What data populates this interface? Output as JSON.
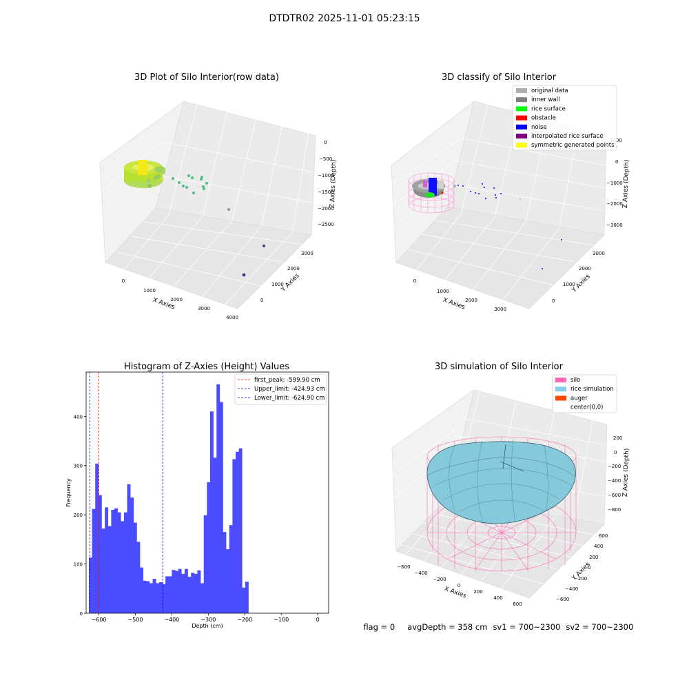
{
  "suptitle": "DTDTR02 2025-11-01 05:23:15",
  "panels": {
    "raw": {
      "title": "3D Plot of Silo Interior(row data)",
      "xlabel": "X Axies",
      "ylabel": "Y Axies",
      "zlabel": "Z Axies (Depth)",
      "xticks": [
        "0",
        "1000",
        "2000",
        "3000",
        "4000"
      ],
      "yticks": [
        "0",
        "1000",
        "2000",
        "3000"
      ],
      "zticks": [
        "0",
        "−500",
        "−1000",
        "−1500",
        "−2000",
        "−2500"
      ]
    },
    "classify": {
      "title": "3D classify of Silo Interior",
      "xlabel": "X Axies",
      "ylabel": "Y Axies",
      "zlabel": "Z Axies (Depth)",
      "xticks": [
        "0",
        "1000",
        "2000",
        "3000"
      ],
      "yticks": [
        "0",
        "1000",
        "2000",
        "3000"
      ],
      "zticks": [
        "1000",
        "0",
        "−1000",
        "−2000",
        "−3000"
      ],
      "legend": [
        {
          "label": "original data",
          "color": "#b0b0b0"
        },
        {
          "label": "inner wall",
          "color": "#808080"
        },
        {
          "label": "rice surface",
          "color": "#00ff00"
        },
        {
          "label": "obstacle",
          "color": "#ff0000"
        },
        {
          "label": "noise",
          "color": "#0000ff"
        },
        {
          "label": "interpolated rice surface",
          "color": "#800080"
        },
        {
          "label": "symmetric generated points",
          "color": "#ffff00"
        }
      ]
    },
    "simulation": {
      "title": "3D simulation of Silo Interior",
      "xlabel": "X Axies",
      "ylabel": "Y Axies",
      "zlabel": "Z Axies (Depth)",
      "xticks": [
        "−600",
        "−400",
        "−200",
        "0",
        "200",
        "400",
        "600"
      ],
      "yticks": [
        "−600",
        "−400",
        "−200",
        "0",
        "200",
        "400",
        "600"
      ],
      "zticks": [
        "200",
        "0",
        "−200",
        "−400",
        "−600",
        "−800"
      ],
      "legend": [
        {
          "label": "silo",
          "color": "#ff69b4"
        },
        {
          "label": "rice simulation",
          "color": "#87ceeb"
        },
        {
          "label": "auger",
          "color": "#ff4500"
        },
        {
          "label": "center(0,0)",
          "color": "#ffffff"
        }
      ]
    }
  },
  "chart_data": [
    {
      "type": "histogram",
      "title": "Histogram of Z-Axies (Height) Values",
      "xlabel": "Depth (cm)",
      "ylabel": "Frequency",
      "xlim": [
        -635,
        30
      ],
      "ylim": [
        0,
        490
      ],
      "xticks": [
        -600,
        -500,
        -400,
        -300,
        -200,
        -100,
        0
      ],
      "yticks": [
        0,
        100,
        200,
        300,
        400
      ],
      "bar_color": "#4c4cff",
      "bin_start": -627.5,
      "bin_width": 8.75,
      "counts": [
        113,
        212,
        304,
        240,
        172,
        215,
        177,
        210,
        213,
        205,
        187,
        205,
        262,
        235,
        184,
        145,
        93,
        66,
        65,
        61,
        70,
        61,
        63,
        59,
        75,
        75,
        88,
        86,
        90,
        80,
        90,
        74,
        82,
        80,
        87,
        61,
        199,
        266,
        410,
        316,
        465,
        429,
        165,
        130,
        179,
        313,
        328,
        335,
        52,
        64
      ],
      "lines": [
        {
          "label": "first_peak: -599.90 cm",
          "x": -599.9,
          "color": "#ff0000"
        },
        {
          "label": "Upper_limit: -424.93 cm",
          "x": -424.93,
          "color": "#0000ff"
        },
        {
          "label": "Lower_limit: -624.90 cm",
          "x": -624.9,
          "color": "#0000ff"
        }
      ]
    }
  ],
  "status": {
    "flag": "flag = 0",
    "avg_depth": "avgDepth = 358 cm",
    "sv1": "sv1 = 700~2300",
    "sv2": "sv2 = 700~2300"
  }
}
